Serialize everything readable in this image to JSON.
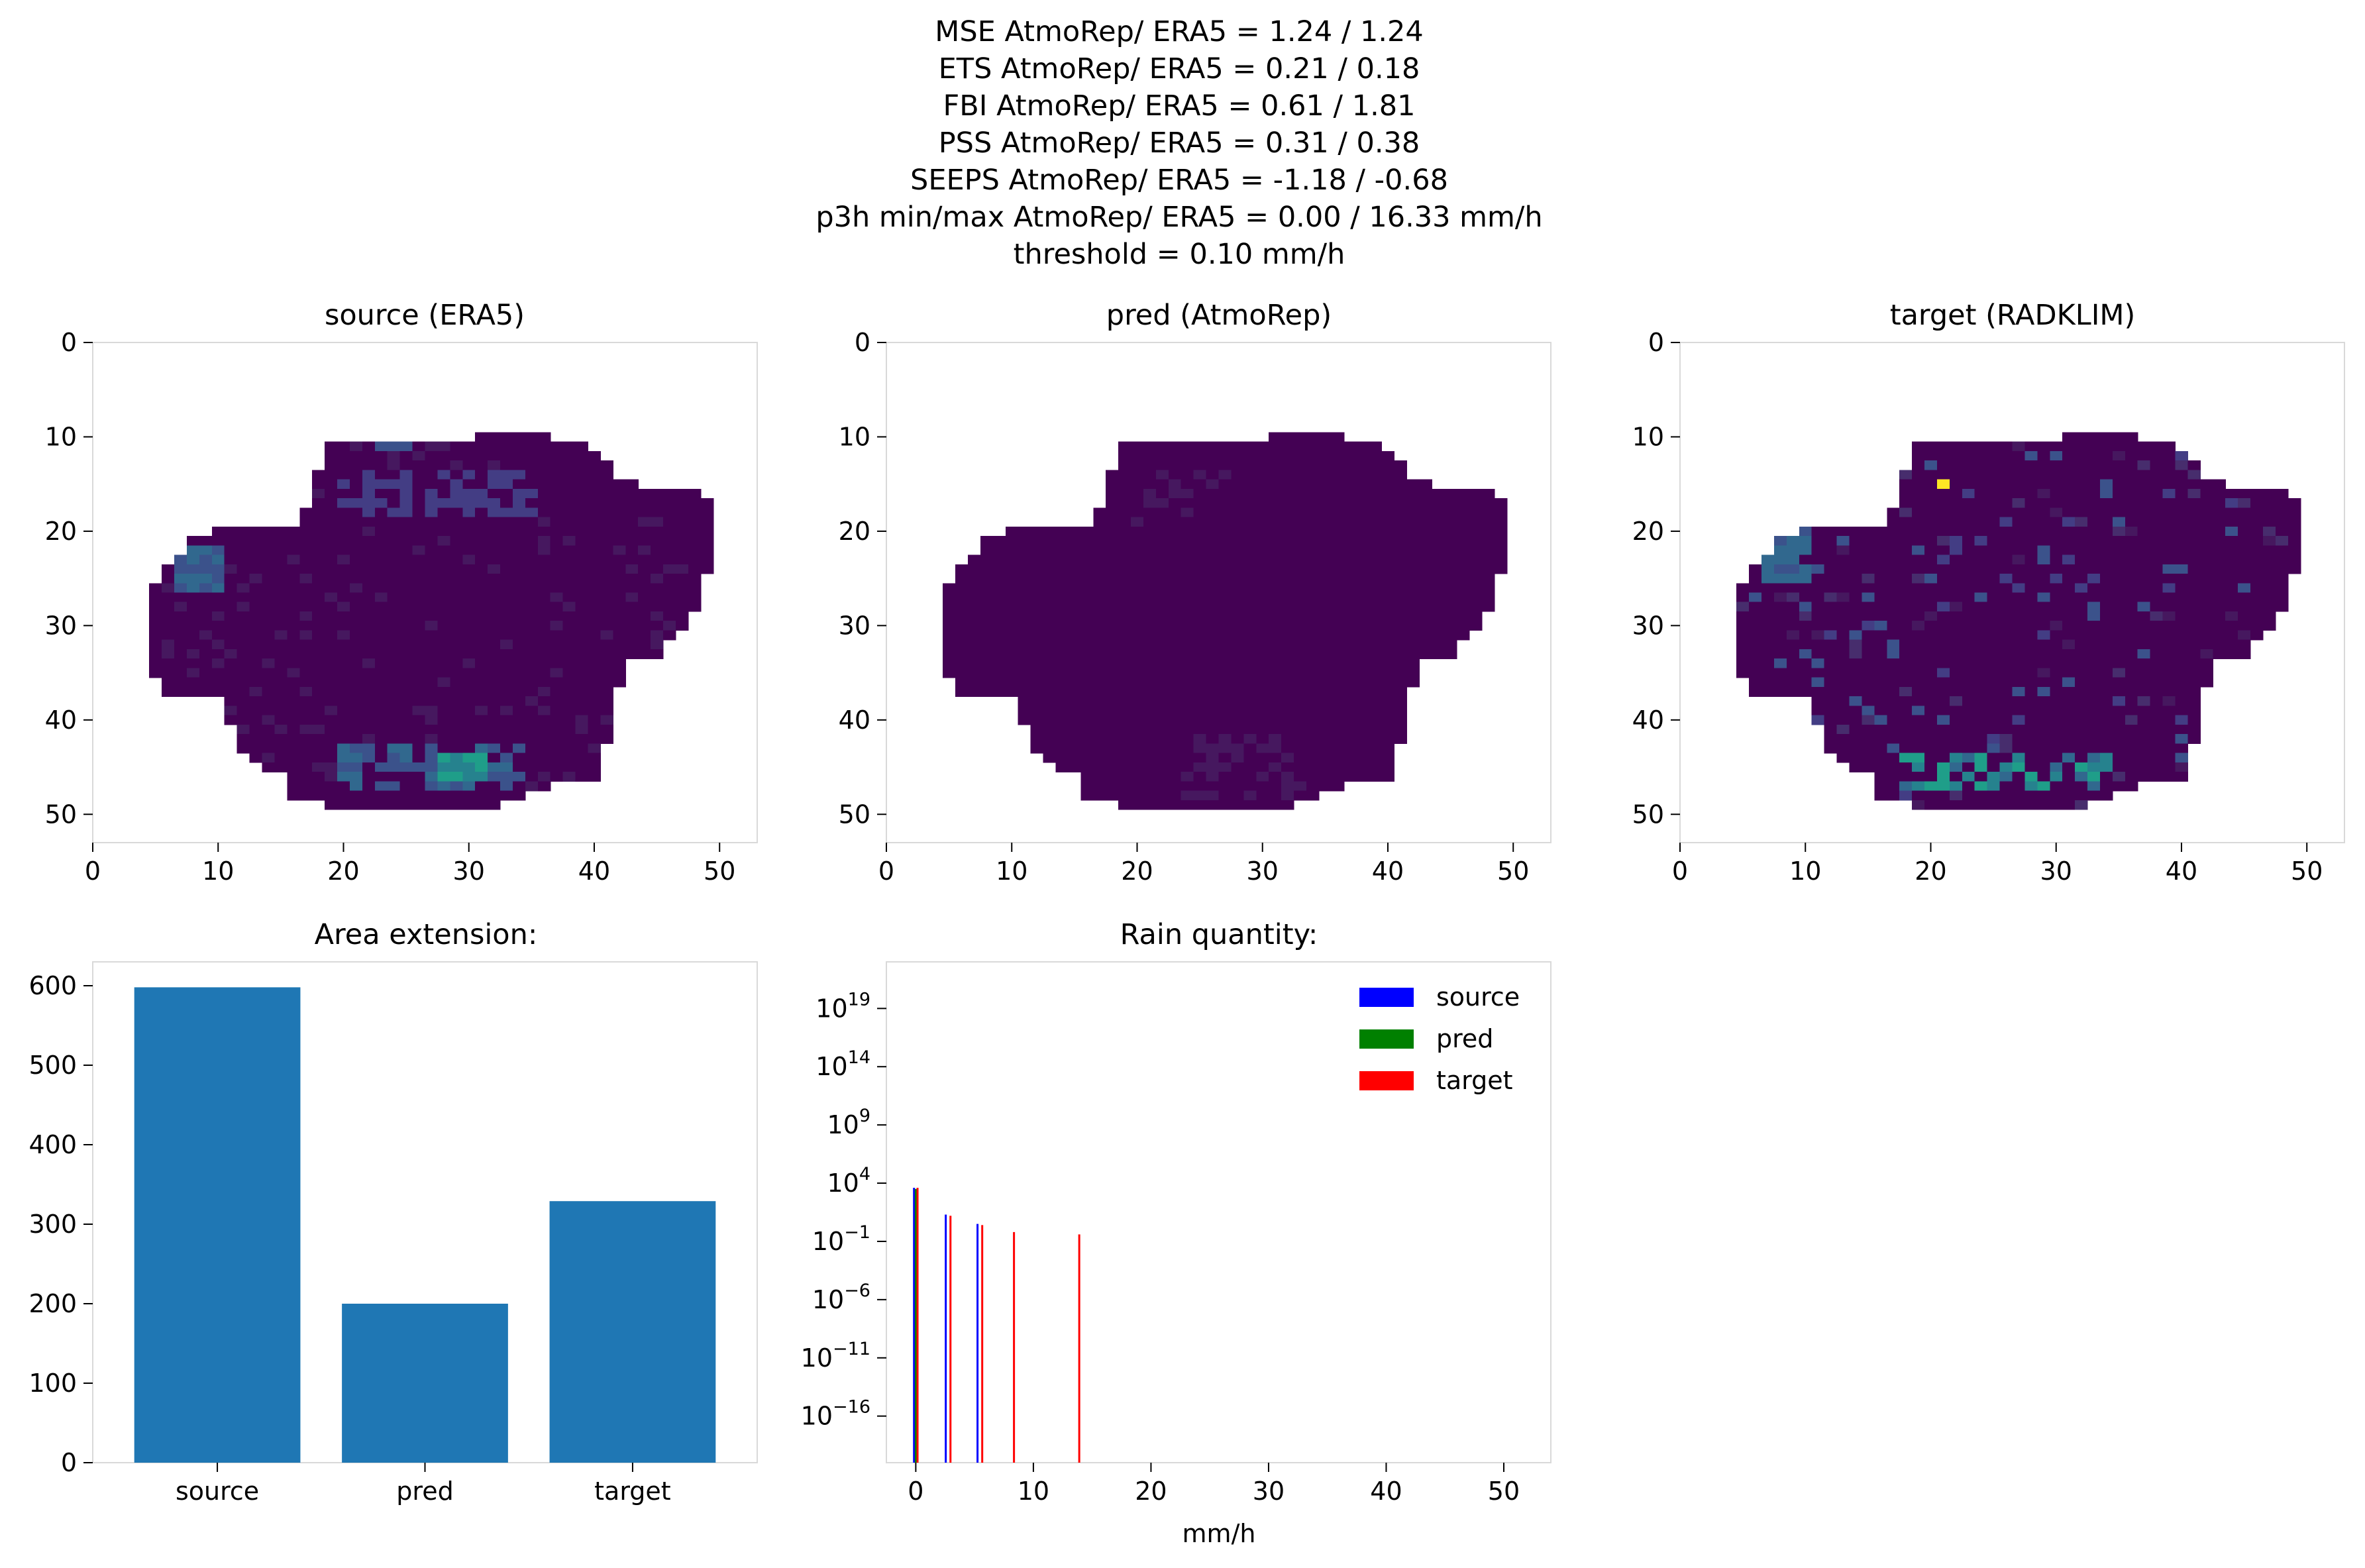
{
  "figure": {
    "title_lines": [
      "MSE AtmoRep/ ERA5 = 1.24 / 1.24",
      "ETS AtmoRep/ ERA5 = 0.21 / 0.18",
      "FBI AtmoRep/ ERA5 = 0.61 / 1.81",
      "PSS AtmoRep/ ERA5 = 0.31 / 0.38",
      "SEEPS AtmoRep/ ERA5 = -1.18 / -0.68",
      "p3h min/max AtmoRep/ ERA5 = 0.00 / 16.33 mm/h",
      "threshold = 0.10 mm/h"
    ]
  },
  "colors": {
    "background_cell": "#440154",
    "area_bar": "#1f77b4",
    "source": "#0000ff",
    "pred": "#008000",
    "target": "#ff0000",
    "spine": "#d9d9d9"
  },
  "chart_data": [
    {
      "type": "heatmap",
      "title": "source (ERA5)",
      "xlim": [
        0,
        53
      ],
      "ylim": [
        53,
        0
      ],
      "x_ticks": [
        "0",
        "10",
        "20",
        "30",
        "40",
        "50"
      ],
      "y_ticks": [
        "0",
        "10",
        "20",
        "30",
        "40",
        "50"
      ],
      "colormap": "viridis",
      "grid": false
    },
    {
      "type": "heatmap",
      "title": "pred (AtmoRep)",
      "xlim": [
        0,
        53
      ],
      "ylim": [
        53,
        0
      ],
      "x_ticks": [
        "0",
        "10",
        "20",
        "30",
        "40",
        "50"
      ],
      "y_ticks": [
        "0",
        "10",
        "20",
        "30",
        "40",
        "50"
      ],
      "colormap": "viridis",
      "grid": false
    },
    {
      "type": "heatmap",
      "title": "target (RADKLIM)",
      "xlim": [
        0,
        53
      ],
      "ylim": [
        53,
        0
      ],
      "x_ticks": [
        "0",
        "10",
        "20",
        "30",
        "40",
        "50"
      ],
      "y_ticks": [
        "0",
        "10",
        "20",
        "30",
        "40",
        "50"
      ],
      "colormap": "viridis",
      "grid": false
    },
    {
      "type": "bar",
      "title": "Area extension:",
      "categories": [
        "source",
        "pred",
        "target"
      ],
      "values": [
        598,
        200,
        329
      ],
      "ylim": [
        0,
        630
      ],
      "y_ticks": [
        "0",
        "100",
        "200",
        "300",
        "400",
        "500",
        "600"
      ],
      "grid": false
    },
    {
      "type": "bar",
      "title": "Rain quantity:",
      "xlabel": "mm/h",
      "x_ticks": [
        "0",
        "10",
        "20",
        "30",
        "40",
        "50"
      ],
      "xlim": [
        -2.5,
        54
      ],
      "y_scale": "log",
      "ylim_exp": [
        -20,
        23
      ],
      "y_tick_exps": [
        "19",
        "14",
        "9",
        "4",
        "−1",
        "−6",
        "−11",
        "−16"
      ],
      "legend": {
        "placement": "top-right",
        "entries": [
          "source",
          "pred",
          "target"
        ]
      },
      "series": [
        {
          "name": "source",
          "bins": [
            {
              "x": -0.15,
              "log10": 3.6
            },
            {
              "x": 2.55,
              "log10": 1.3
            },
            {
              "x": 5.25,
              "log10": 0.5
            }
          ]
        },
        {
          "name": "pred",
          "bins": [
            {
              "x": 0.0,
              "log10": 3.5
            }
          ]
        },
        {
          "name": "target",
          "bins": [
            {
              "x": 0.15,
              "log10": 3.6
            },
            {
              "x": 2.95,
              "log10": 1.2
            },
            {
              "x": 5.65,
              "log10": 0.4
            },
            {
              "x": 8.35,
              "log10": -0.2
            },
            {
              "x": 13.9,
              "log10": -0.4
            }
          ]
        }
      ],
      "grid": false
    }
  ]
}
